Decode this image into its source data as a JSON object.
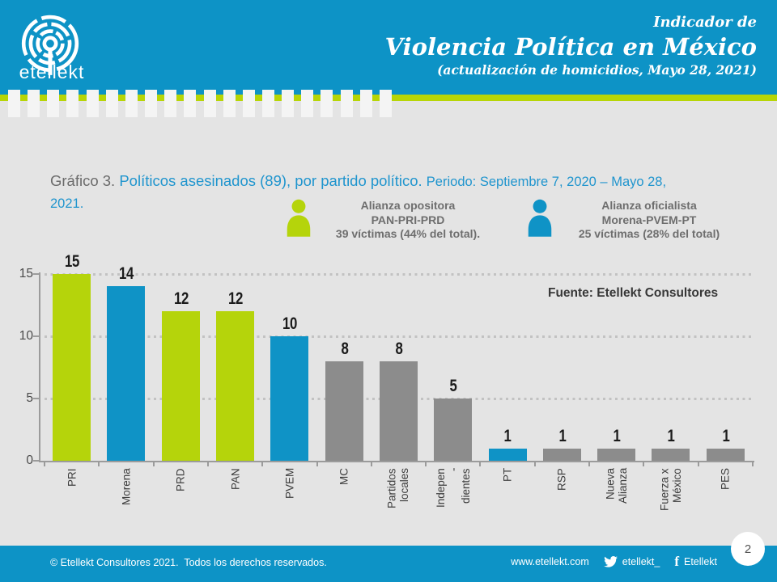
{
  "colors": {
    "header_blue": "#0d93c6",
    "accent_green": "#b7d506",
    "body_bg": "#e4e4e4"
  },
  "header": {
    "logo_text": "etellekt",
    "eyebrow": "Indicador de",
    "title": "Violencia Política en México",
    "subtitle": "(actualización de homicidios, Mayo 28, 2021)"
  },
  "graph_heading": {
    "prefix": "Gráfico 3.",
    "main": "Políticos asesinados (89), por partido político.",
    "period": "Periodo: Septiembre 7, 2020 – Mayo 28, 2021."
  },
  "legend": [
    {
      "name": "alianza-opositora",
      "color": "#b5d40b",
      "lines": [
        "Alianza opositora",
        "PAN-PRI-PRD",
        "39 víctimas (44% del total)."
      ]
    },
    {
      "name": "alianza-oficialista",
      "color": "#0f93c6",
      "lines": [
        "Alianza oficialista",
        "Morena-PVEM-PT",
        "25 víctimas (28% del total)"
      ]
    }
  ],
  "source_note": "Fuente: Etellekt Consultores",
  "chart_data": {
    "type": "bar",
    "title": "Políticos asesinados (89), por partido político",
    "period": "Septiembre 7, 2020 – Mayo 28, 2021",
    "total_victims": 89,
    "categories": [
      "PRI",
      "Morena",
      "PRD",
      "PAN",
      "PVEM",
      "MC",
      "Partidos\nlocales",
      "Indepen\n-\ndientes",
      "PT",
      "RSP",
      "Nueva\nAlianza",
      "Fuerza x\nMéxico",
      "PES"
    ],
    "values": [
      15,
      14,
      12,
      12,
      10,
      8,
      8,
      5,
      1,
      1,
      1,
      1,
      1
    ],
    "bar_colors": [
      "green",
      "blue",
      "green",
      "green",
      "blue",
      "gray",
      "gray",
      "gray",
      "blue",
      "gray",
      "gray",
      "gray",
      "gray"
    ],
    "palette": {
      "green": "#b5d40b",
      "blue": "#0f93c6",
      "gray": "#8c8c8c"
    },
    "yticks": [
      0,
      5,
      10,
      15
    ],
    "ylim": [
      0,
      15
    ],
    "grid": "horizontal dotted at 5, 10, 15",
    "legend_position": "top"
  },
  "footer": {
    "copyright": "© Etellekt Consultores 2021.  Todos los derechos reservados.",
    "website": "www.etellekt.com",
    "twitter_handle": "etellekt_",
    "facebook_name": "Etellekt",
    "page_number": "2"
  }
}
